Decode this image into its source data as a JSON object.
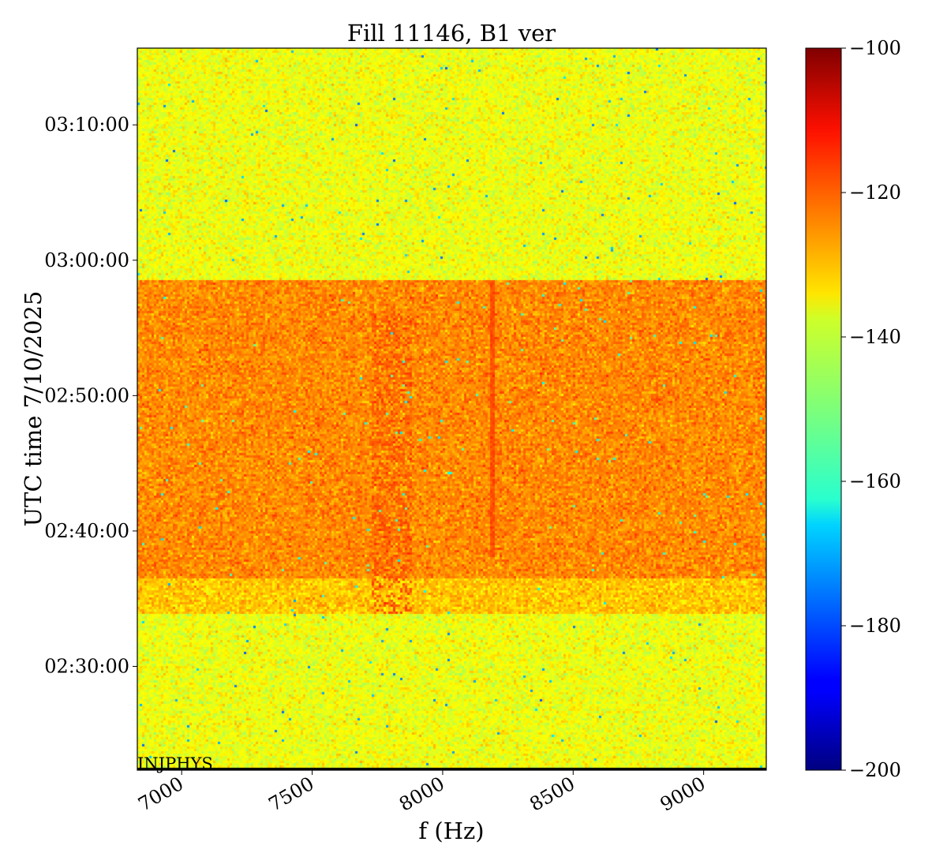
{
  "chart_data": {
    "type": "heatmap",
    "title": "Fill 11146, B1 ver",
    "xlabel": "f (Hz)",
    "ylabel": "UTC time 7/10/2025",
    "xlim": [
      6830,
      9240
    ],
    "x_ticks": [
      7000,
      7500,
      8000,
      8500,
      9000
    ],
    "x_tick_labels": [
      "7000",
      "7500",
      "8000",
      "8500",
      "9000"
    ],
    "ylim": [
      "02:22:20",
      "03:15:40"
    ],
    "y_ticks": [
      "02:30:00",
      "02:40:00",
      "02:50:00",
      "03:00:00",
      "03:10:00"
    ],
    "y_tick_labels": [
      "02:30:00",
      "02:40:00",
      "02:50:00",
      "03:00:00",
      "03:10:00"
    ],
    "colorbar": {
      "colormap": "jet",
      "range": [
        -200,
        -100
      ],
      "ticks": [
        -100,
        -120,
        -140,
        -160,
        -180,
        -200
      ],
      "tick_labels": [
        "−100",
        "−120",
        "−140",
        "−160",
        "−180",
        "−200"
      ]
    },
    "annotation": "INJPHYS",
    "regions": [
      {
        "time_start": "02:22:20",
        "time_end": "02:33:55",
        "level_db": -139
      },
      {
        "time_start": "02:33:55",
        "time_end": "02:36:30",
        "level_db": -132
      },
      {
        "time_start": "02:36:30",
        "time_end": "02:58:30",
        "level_db": -126
      },
      {
        "time_start": "02:58:30",
        "time_end": "03:15:40",
        "level_db": -139
      }
    ],
    "features": [
      {
        "kind": "vertical_line",
        "frequency": 8190,
        "time_start": "02:38:00",
        "time_end": "02:58:30",
        "level_db": -120
      },
      {
        "kind": "band",
        "freq_start": "7730",
        "freq_end": "7880",
        "time_start": "02:33:55",
        "time_end": "02:56:00",
        "level_db": -121
      }
    ],
    "colors": {
      "plot_border": "#000000"
    }
  }
}
